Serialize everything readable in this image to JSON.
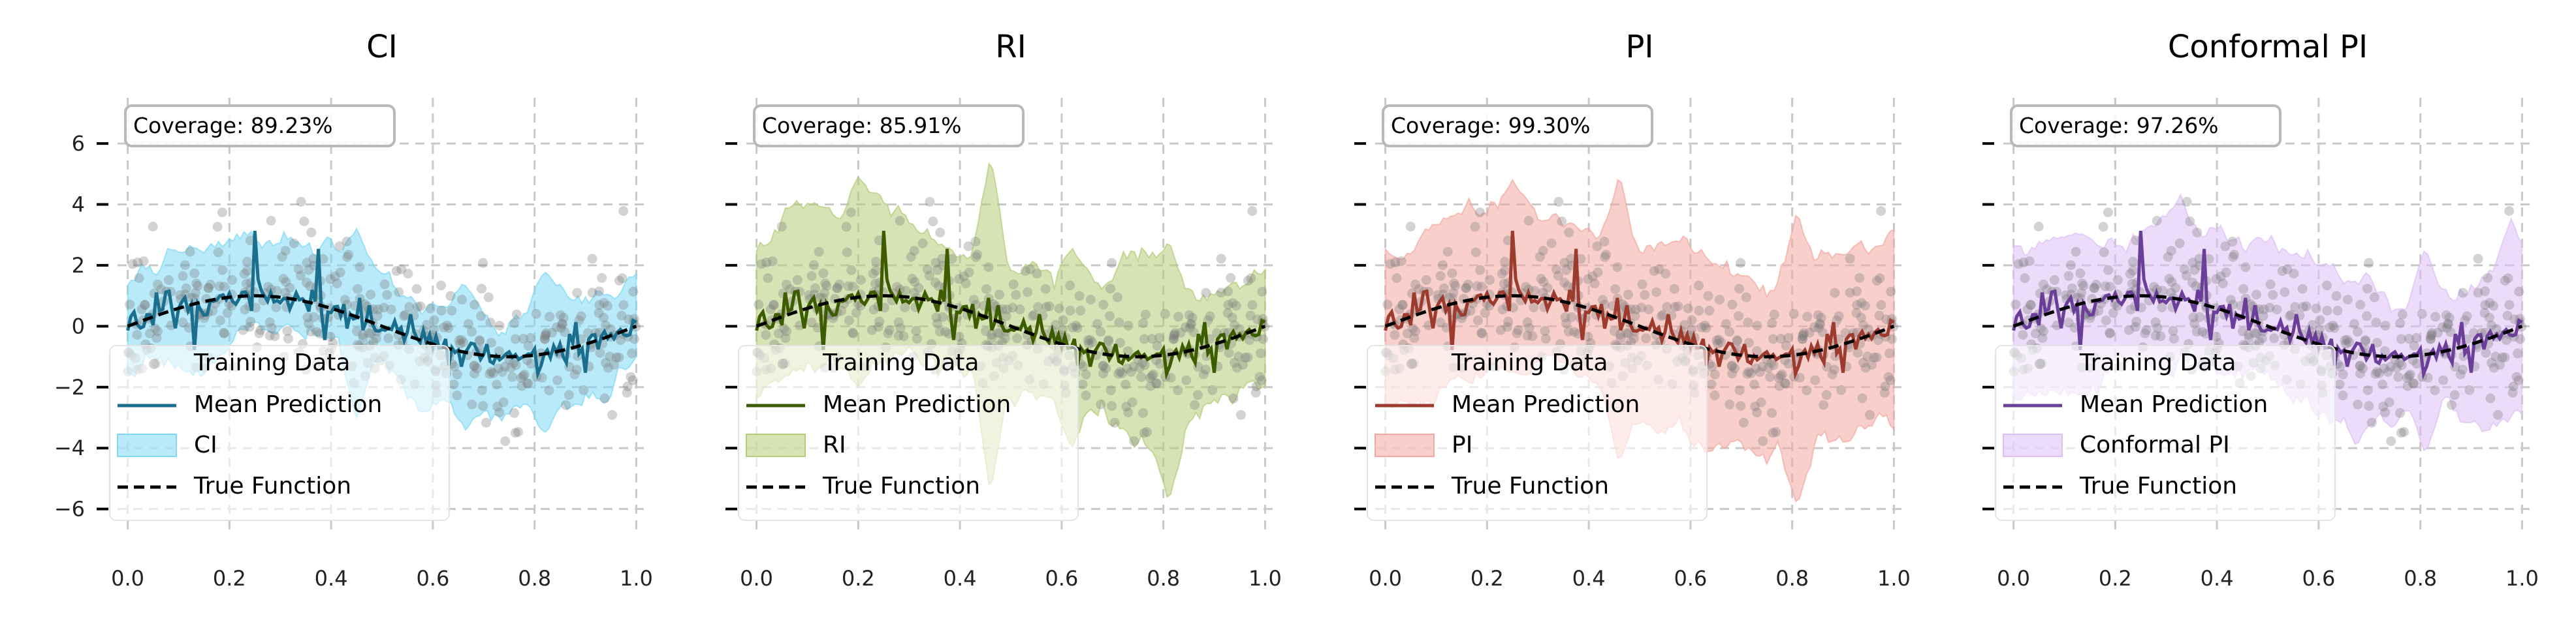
{
  "chart_data": [
    {
      "type": "line",
      "title": "CI",
      "band_label": "CI",
      "coverage_text": "Coverage: 89.23%",
      "colors": {
        "line": "#1a6f8f",
        "band": "#7fd8f5",
        "scatter": "#a0a0a0"
      },
      "xlim": [
        -0.02,
        1.02
      ],
      "ylim": [
        -6.8,
        7.5
      ],
      "xticks": [
        "0.0",
        "0.2",
        "0.4",
        "0.6",
        "0.8",
        "1.0"
      ],
      "yticks": [
        "6",
        "4",
        "2",
        "0",
        "−2",
        "−4",
        "−6"
      ],
      "show_ytick_labels": true,
      "band_width": 1.6,
      "spikes": [
        [
          0.45,
          3.2,
          -3.0
        ],
        [
          0.82,
          1.8,
          -3.5
        ],
        [
          0.66,
          1.4,
          -1.6
        ]
      ],
      "legend": [
        "Training Data",
        "Mean Prediction",
        "CI",
        "True Function"
      ],
      "grid": true
    },
    {
      "type": "line",
      "title": "RI",
      "band_label": "RI",
      "coverage_text": "Coverage: 85.91%",
      "colors": {
        "line": "#3d5c00",
        "band": "#b5cc78",
        "scatter": "#a0a0a0"
      },
      "xlim": [
        -0.02,
        1.02
      ],
      "ylim": [
        -6.8,
        7.5
      ],
      "xticks": [
        "0.0",
        "0.2",
        "0.4",
        "0.6",
        "0.8",
        "1.0"
      ],
      "yticks": [
        "6",
        "4",
        "2",
        "0",
        "−2",
        "−4",
        "−6"
      ],
      "show_ytick_labels": false,
      "band_width": 2.2,
      "spikes": [
        [
          0.2,
          4.9,
          -2.0
        ],
        [
          0.46,
          5.6,
          -5.5
        ],
        [
          0.81,
          2.8,
          -5.8
        ],
        [
          0.62,
          2.6,
          -4.0
        ]
      ],
      "legend": [
        "Training Data",
        "Mean Prediction",
        "RI",
        "True Function"
      ],
      "grid": true
    },
    {
      "type": "line",
      "title": "PI",
      "band_label": "PI",
      "coverage_text": "Coverage: 99.30%",
      "colors": {
        "line": "#9c3b2e",
        "band": "#f4a8a0",
        "scatter": "#a0a0a0"
      },
      "xlim": [
        -0.02,
        1.02
      ],
      "ylim": [
        -6.8,
        7.5
      ],
      "xticks": [
        "0.0",
        "0.2",
        "0.4",
        "0.6",
        "0.8",
        "1.0"
      ],
      "yticks": [
        "6",
        "4",
        "2",
        "0",
        "−2",
        "−4",
        "−6"
      ],
      "show_ytick_labels": false,
      "band_width": 2.8,
      "spikes": [
        [
          0.46,
          5.0,
          -4.5
        ],
        [
          0.81,
          3.8,
          -5.9
        ],
        [
          0.25,
          4.8,
          -1.5
        ]
      ],
      "legend": [
        "Training Data",
        "Mean Prediction",
        "PI",
        "True Function"
      ],
      "grid": true
    },
    {
      "type": "line",
      "title": "Conformal PI",
      "band_label": "Conformal PI",
      "coverage_text": "Coverage: 97.26%",
      "colors": {
        "line": "#6b3f99",
        "band": "#dcc0f5",
        "scatter": "#a0a0a0"
      },
      "xlim": [
        -0.02,
        1.02
      ],
      "ylim": [
        -6.8,
        7.5
      ],
      "xticks": [
        "0.0",
        "0.2",
        "0.4",
        "0.6",
        "0.8",
        "1.0"
      ],
      "yticks": [
        "6",
        "4",
        "2",
        "0",
        "−2",
        "−4",
        "−6"
      ],
      "show_ytick_labels": false,
      "band_width": 2.4,
      "spikes": [
        [
          0.81,
          2.6,
          -4.2
        ],
        [
          0.98,
          3.6,
          -1.5
        ],
        [
          0.12,
          3.0,
          -1.2
        ]
      ],
      "legend": [
        "Training Data",
        "Mean Prediction",
        "Conformal PI",
        "True Function"
      ],
      "grid": true
    }
  ]
}
